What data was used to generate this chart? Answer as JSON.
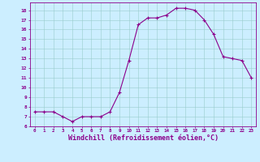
{
  "x": [
    0,
    1,
    2,
    3,
    4,
    5,
    6,
    7,
    8,
    9,
    10,
    11,
    12,
    13,
    14,
    15,
    16,
    17,
    18,
    19,
    20,
    21,
    22,
    23
  ],
  "y": [
    7.5,
    7.5,
    7.5,
    7.0,
    6.5,
    7.0,
    7.0,
    7.0,
    7.5,
    9.5,
    12.8,
    16.5,
    17.2,
    17.2,
    17.5,
    18.2,
    18.2,
    18.0,
    17.0,
    15.5,
    13.2,
    13.0,
    12.8,
    11.0
  ],
  "line_color": "#8B008B",
  "marker": "+",
  "markersize": 3,
  "linewidth": 0.8,
  "xlabel": "Windchill (Refroidissement éolien,°C)",
  "xlabel_fontsize": 6,
  "xtick_labels": [
    "0",
    "1",
    "2",
    "3",
    "4",
    "5",
    "6",
    "7",
    "8",
    "9",
    "10",
    "11",
    "12",
    "13",
    "14",
    "15",
    "16",
    "17",
    "18",
    "19",
    "20",
    "21",
    "22",
    "23"
  ],
  "ytick_labels": [
    "6",
    "7",
    "8",
    "9",
    "10",
    "11",
    "12",
    "13",
    "14",
    "15",
    "16",
    "17",
    "18"
  ],
  "ylim": [
    6,
    18.8
  ],
  "xlim": [
    -0.5,
    23.5
  ],
  "bg_color": "#cceeff",
  "grid_color": "#99cccc",
  "tick_color": "#8B008B",
  "label_color": "#8B008B"
}
